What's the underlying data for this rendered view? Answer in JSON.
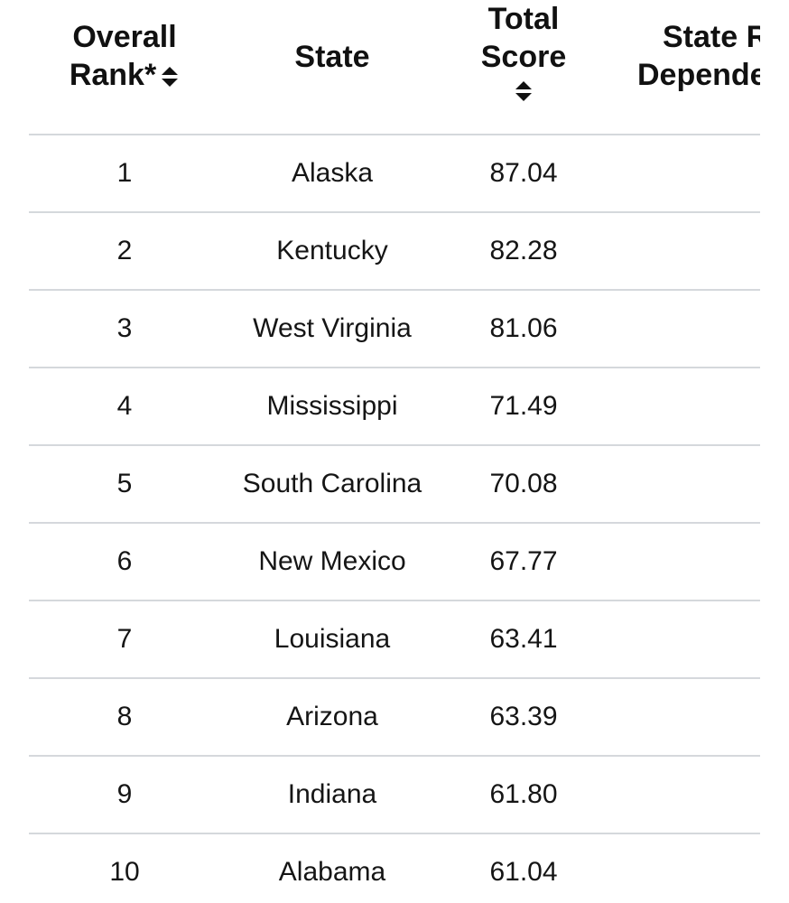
{
  "table": {
    "headers": {
      "rank_line1": "Overall",
      "rank_line2": "Rank*",
      "state": "State",
      "score_line1": "Total",
      "score_line2": "Score",
      "dependency_line1": "State R",
      "dependency_line2": "Depende"
    },
    "rows": [
      {
        "rank": "1",
        "state": "Alaska",
        "score": "87.04"
      },
      {
        "rank": "2",
        "state": "Kentucky",
        "score": "82.28"
      },
      {
        "rank": "3",
        "state": "West Virginia",
        "score": "81.06"
      },
      {
        "rank": "4",
        "state": "Mississippi",
        "score": "71.49"
      },
      {
        "rank": "5",
        "state": "South Carolina",
        "score": "70.08"
      },
      {
        "rank": "6",
        "state": "New Mexico",
        "score": "67.77"
      },
      {
        "rank": "7",
        "state": "Louisiana",
        "score": "63.41"
      },
      {
        "rank": "8",
        "state": "Arizona",
        "score": "63.39"
      },
      {
        "rank": "9",
        "state": "Indiana",
        "score": "61.80"
      },
      {
        "rank": "10",
        "state": "Alabama",
        "score": "61.04"
      }
    ]
  },
  "icons": {
    "sort": "sort-up-down-icon"
  },
  "colors": {
    "text": "#111111",
    "divider": "#d5d8dc"
  }
}
